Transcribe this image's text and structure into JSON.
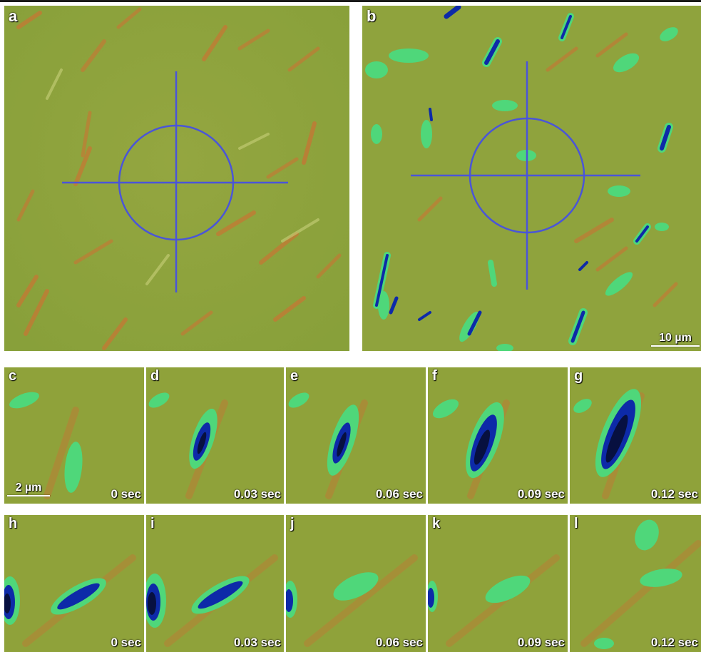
{
  "colors": {
    "background_green": "#8fa53a",
    "streak_orange": "#c77a34",
    "segmented_light": "#4fd77a",
    "segmented_dark": "#0d2aa8",
    "crosshair_blue": "#4a55d8",
    "label_white": "#ffffff"
  },
  "panels": {
    "a": {
      "label": "a"
    },
    "b": {
      "label": "b",
      "scale_bar": "10 µm"
    },
    "c": {
      "label": "c",
      "time": "0 sec",
      "scale_bar": "2 µm"
    },
    "d": {
      "label": "d",
      "time": "0.03 sec"
    },
    "e": {
      "label": "e",
      "time": "0.06 sec"
    },
    "f": {
      "label": "f",
      "time": "0.09 sec"
    },
    "g": {
      "label": "g",
      "time": "0.12 sec"
    },
    "h": {
      "label": "h",
      "time": "0 sec"
    },
    "i": {
      "label": "i",
      "time": "0.03 sec"
    },
    "j": {
      "label": "j",
      "time": "0.06 sec"
    },
    "k": {
      "label": "k",
      "time": "0.09 sec"
    },
    "l": {
      "label": "l",
      "time": "0.12 sec"
    }
  }
}
